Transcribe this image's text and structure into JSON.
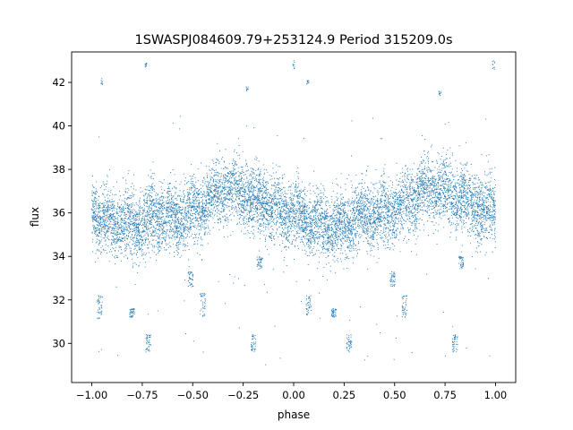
{
  "chart_data": {
    "type": "scatter",
    "title": "1SWASPJ084609.79+253124.9 Period 315209.0s",
    "xlabel": "phase",
    "ylabel": "flux",
    "xlim": [
      -1.1,
      1.1
    ],
    "ylim": [
      28.2,
      43.4
    ],
    "x_ticks": [
      -1.0,
      -0.75,
      -0.5,
      -0.25,
      0.0,
      0.25,
      0.5,
      0.75,
      1.0
    ],
    "x_tick_labels": [
      "−1.00",
      "−0.75",
      "−0.50",
      "−0.25",
      "0.00",
      "0.25",
      "0.50",
      "0.75",
      "1.00"
    ],
    "y_ticks": [
      30,
      32,
      34,
      36,
      38,
      40,
      42
    ],
    "y_tick_labels": [
      "30",
      "32",
      "34",
      "36",
      "38",
      "40",
      "42"
    ],
    "grid": false,
    "legend": "none",
    "marker_color": "#1f77b4",
    "marker": "small dot",
    "point_count_approx": 9000,
    "series": [
      {
        "mean_curve_phase": [
          -1.0,
          -0.95,
          -0.9,
          -0.85,
          -0.8,
          -0.75,
          -0.7,
          -0.65,
          -0.6,
          -0.55,
          -0.5,
          -0.45,
          -0.4,
          -0.35,
          -0.3,
          -0.25,
          -0.2,
          -0.15,
          -0.1,
          -0.05,
          0.0,
          0.05,
          0.1,
          0.15,
          0.2,
          0.25,
          0.3,
          0.35,
          0.4,
          0.45,
          0.5,
          0.55,
          0.6,
          0.65,
          0.7,
          0.75,
          0.8,
          0.85,
          0.9,
          0.95,
          1.0
        ],
        "mean_curve_flux": [
          36.2,
          35.8,
          35.5,
          35.6,
          35.3,
          35.5,
          35.9,
          35.8,
          35.7,
          35.9,
          36.0,
          36.3,
          36.8,
          37.1,
          37.0,
          36.8,
          36.6,
          36.4,
          36.2,
          36.0,
          35.9,
          35.7,
          35.5,
          35.4,
          35.3,
          35.4,
          35.7,
          35.8,
          35.9,
          36.0,
          36.1,
          36.3,
          36.7,
          37.0,
          37.1,
          36.9,
          36.7,
          36.5,
          36.3,
          36.1,
          36.0
        ],
        "scatter_spread_flux": 0.75,
        "outlier_clusters": [
          {
            "phase": -0.96,
            "flux_range": [
              31.1,
              32.2
            ]
          },
          {
            "phase": -0.8,
            "flux_range": [
              31.2,
              31.6
            ]
          },
          {
            "phase": -0.72,
            "flux_range": [
              29.6,
              30.4
            ]
          },
          {
            "phase": -0.51,
            "flux_range": [
              32.6,
              33.3
            ]
          },
          {
            "phase": -0.45,
            "flux_range": [
              31.2,
              32.3
            ]
          },
          {
            "phase": -0.2,
            "flux_range": [
              29.6,
              30.4
            ]
          },
          {
            "phase": -0.17,
            "flux_range": [
              33.4,
              34.0
            ]
          },
          {
            "phase": 0.075,
            "flux_range": [
              31.3,
              32.2
            ]
          },
          {
            "phase": 0.2,
            "flux_range": [
              31.2,
              31.6
            ]
          },
          {
            "phase": 0.275,
            "flux_range": [
              29.6,
              30.4
            ]
          },
          {
            "phase": 0.49,
            "flux_range": [
              32.6,
              33.3
            ]
          },
          {
            "phase": 0.55,
            "flux_range": [
              31.2,
              32.3
            ]
          },
          {
            "phase": 0.8,
            "flux_range": [
              29.6,
              30.4
            ]
          },
          {
            "phase": 0.83,
            "flux_range": [
              33.4,
              34.0
            ]
          }
        ],
        "high_points": [
          {
            "phase": -0.95,
            "flux_range": [
              41.9,
              42.2
            ]
          },
          {
            "phase": -0.73,
            "flux_range": [
              42.7,
              42.9
            ]
          },
          {
            "phase": -0.23,
            "flux_range": [
              41.6,
              41.8
            ]
          },
          {
            "phase": 0.0,
            "flux_range": [
              42.6,
              43.0
            ]
          },
          {
            "phase": 0.07,
            "flux_range": [
              41.9,
              42.1
            ]
          },
          {
            "phase": 0.725,
            "flux_range": [
              41.4,
              41.6
            ]
          },
          {
            "phase": 0.99,
            "flux_range": [
              42.6,
              43.0
            ]
          }
        ]
      }
    ]
  }
}
